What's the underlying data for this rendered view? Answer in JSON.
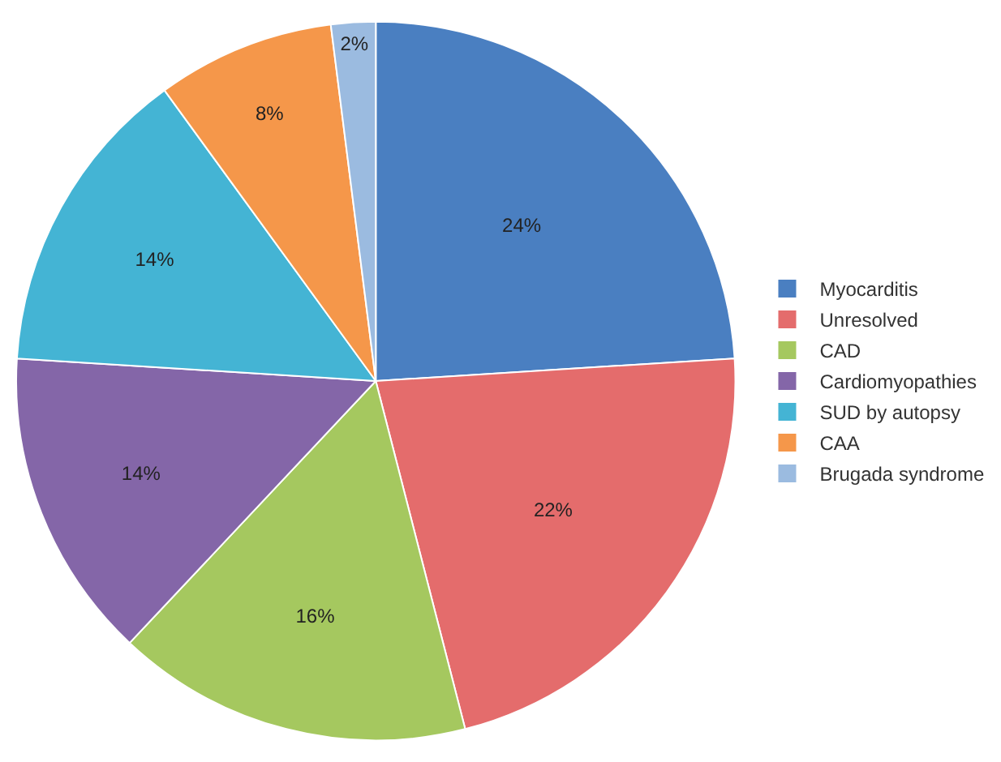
{
  "chart_data": {
    "type": "pie",
    "categories": [
      "Myocarditis",
      "Unresolved",
      "CAD",
      "Cardiomyopathies",
      "SUD by autopsy",
      "CAA",
      "Brugada syndrome"
    ],
    "values": [
      24,
      22,
      16,
      14,
      14,
      8,
      2
    ],
    "colors": [
      "#4a7fc1",
      "#e46c6c",
      "#a5c85f",
      "#8466a8",
      "#44b4d4",
      "#f5974a",
      "#9bbbe0"
    ],
    "value_labels": [
      "24%",
      "22%",
      "16%",
      "14%",
      "14%",
      "8%",
      "2%"
    ],
    "legend": "right"
  }
}
